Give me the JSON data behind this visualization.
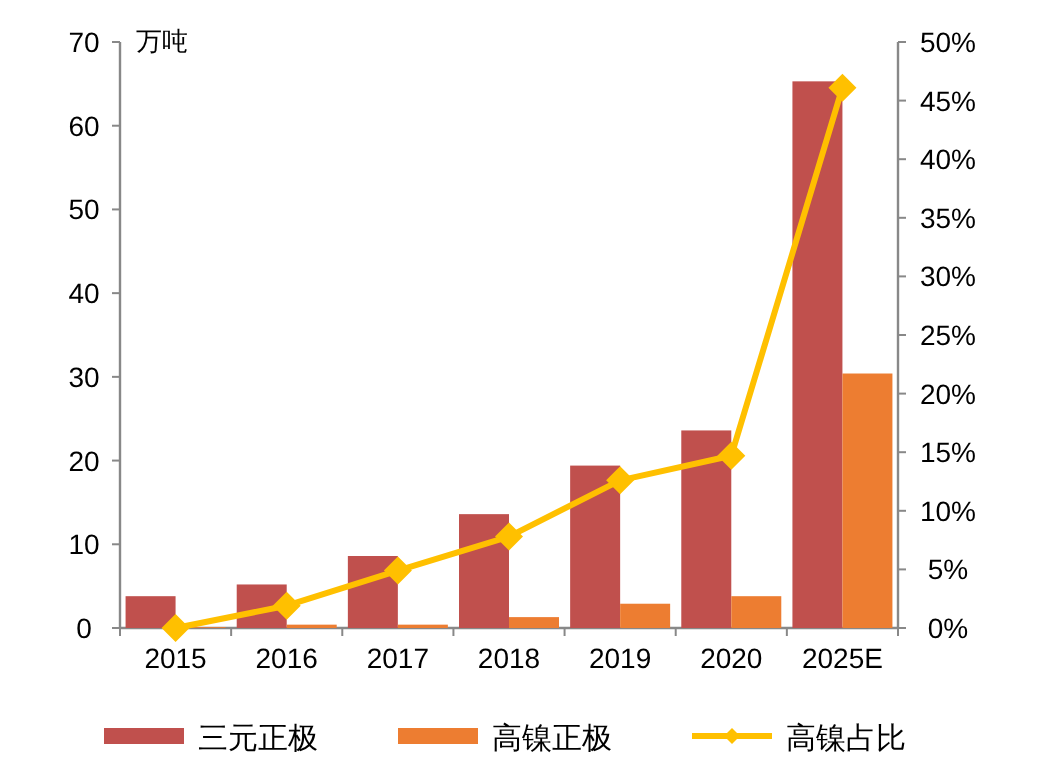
{
  "chart_data": {
    "type": "bar",
    "ylabel": "万吨",
    "categories": [
      "2015",
      "2016",
      "2017",
      "2018",
      "2019",
      "2020",
      "2025E"
    ],
    "series": [
      {
        "name": "三元正极",
        "color": "#c0504d",
        "values": [
          3.8,
          5.2,
          8.6,
          13.6,
          19.4,
          23.6,
          65.3
        ]
      },
      {
        "name": "高镍正极",
        "color": "#ed7d31",
        "values": [
          0.1,
          0.4,
          0.4,
          1.3,
          2.9,
          3.8,
          30.4
        ]
      },
      {
        "name": "高镍占比",
        "type": "line",
        "axis": "y2",
        "color": "#ffc000",
        "marker": "diamond",
        "values": [
          0,
          1.9,
          4.9,
          7.8,
          12.6,
          14.7,
          46.1
        ]
      }
    ],
    "ylim": [
      0,
      70
    ],
    "yticks": [
      0,
      10,
      20,
      30,
      40,
      50,
      60,
      70
    ],
    "y2lim": [
      0,
      50
    ],
    "y2ticks": [
      {
        "value": 0,
        "label": "0%"
      },
      {
        "value": 5,
        "label": "5%"
      },
      {
        "value": 10,
        "label": "10%"
      },
      {
        "value": 15,
        "label": "15%"
      },
      {
        "value": 20,
        "label": "20%"
      },
      {
        "value": 25,
        "label": "25%"
      },
      {
        "value": 30,
        "label": "30%"
      },
      {
        "value": 35,
        "label": "35%"
      },
      {
        "value": 40,
        "label": "40%"
      },
      {
        "value": 45,
        "label": "45%"
      },
      {
        "value": 50,
        "label": "50%"
      }
    ],
    "legend": "bottom"
  }
}
